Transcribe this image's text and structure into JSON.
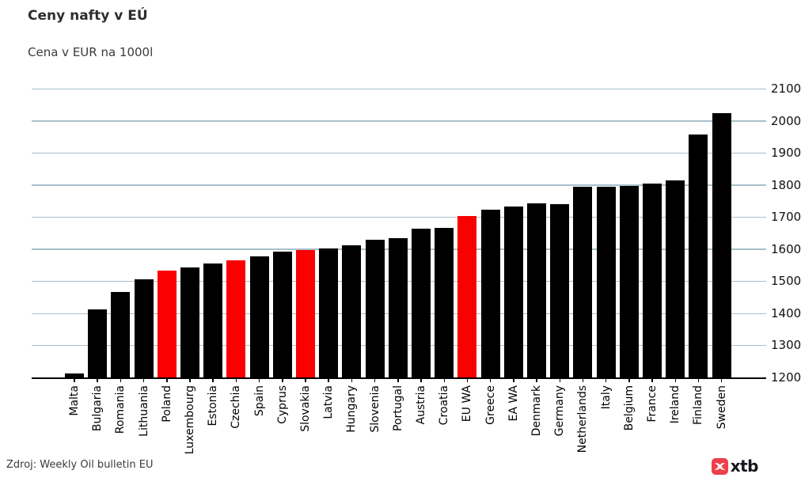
{
  "header": {
    "title": "Ceny nafty v EÚ",
    "subtitle": "Cena v EUR na 1000l"
  },
  "footer": {
    "source": "Zdroj: Weekly Oil bulletin EU",
    "logo_text": "xtb"
  },
  "colors": {
    "bar": "#000000",
    "highlight": "#fa0000",
    "gridline": "#a9bfcb",
    "axis": "#000000",
    "logo_red": "#ee404a",
    "logo_text": "#16161e"
  },
  "chart_data": {
    "type": "bar",
    "title": "Ceny nafty v EÚ",
    "subtitle": "Cena v EUR na 1000l",
    "xlabel": "",
    "ylabel": "EUR / 1000l",
    "ylim": [
      1200,
      2100
    ],
    "yticks": [
      1200,
      1300,
      1400,
      1500,
      1600,
      1700,
      1800,
      1900,
      2000,
      2100
    ],
    "yaxis_side": "right",
    "grid": true,
    "legend": null,
    "categories": [
      "Malta",
      "Bulgaria",
      "Romania",
      "Lithuania",
      "Poland",
      "Luxembourg",
      "Estonia",
      "Czechia",
      "Spain",
      "Cyprus",
      "Slovakia",
      "Latvia",
      "Hungary",
      "Slovenia",
      "Portugal",
      "Austria",
      "Croatia",
      "EU WA",
      "Greece",
      "EA WA",
      "Denmark",
      "Germany",
      "Netherlands",
      "Italy",
      "Belgium",
      "France",
      "Ireland",
      "Finland",
      "Sweden"
    ],
    "values": [
      1212,
      1412,
      1466,
      1506,
      1532,
      1542,
      1554,
      1566,
      1578,
      1591,
      1598,
      1603,
      1612,
      1629,
      1633,
      1663,
      1667,
      1704,
      1722,
      1732,
      1742,
      1740,
      1795,
      1795,
      1796,
      1805,
      1815,
      1958,
      2024
    ],
    "highlighted_categories": [
      "Poland",
      "Czechia",
      "Slovakia",
      "EU WA"
    ]
  }
}
